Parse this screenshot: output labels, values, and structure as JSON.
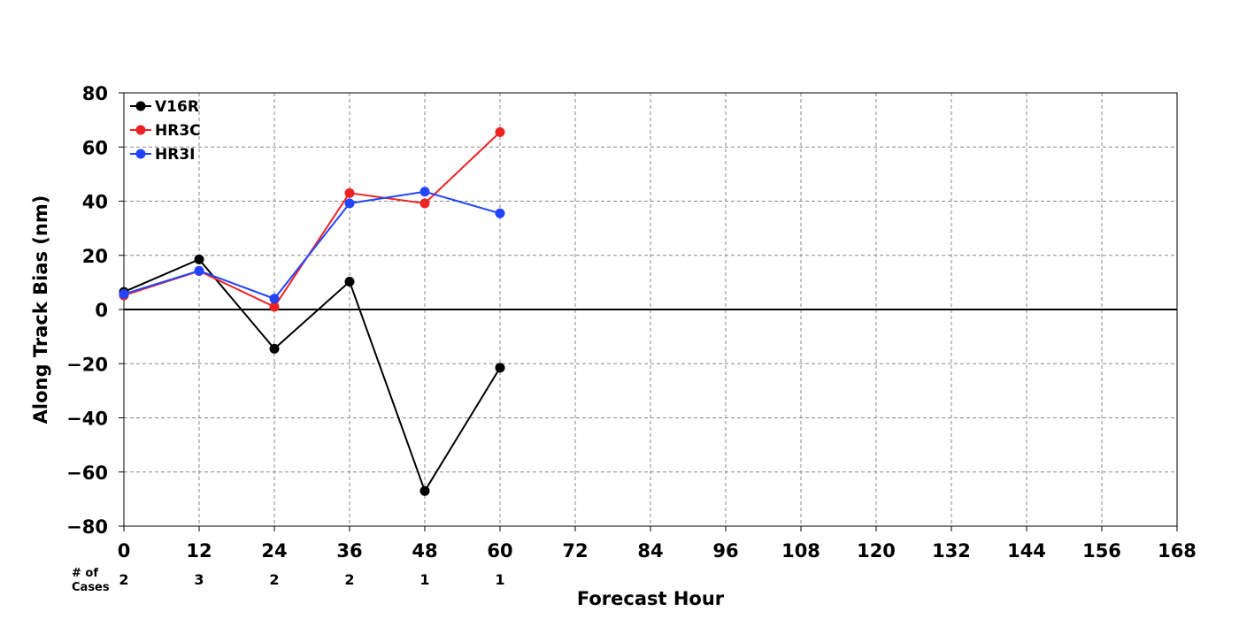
{
  "chart_data": {
    "type": "line",
    "xlabel": "Forecast Hour",
    "ylabel": "Along Track Bias (nm)",
    "xlim": [
      0,
      168
    ],
    "ylim": [
      -80,
      80
    ],
    "x_ticks": [
      0,
      12,
      24,
      36,
      48,
      60,
      72,
      84,
      96,
      108,
      120,
      132,
      144,
      156,
      168
    ],
    "y_ticks": [
      80,
      60,
      40,
      20,
      0,
      -20,
      -40,
      -60,
      -80
    ],
    "y_tick_labels": [
      "80",
      "60",
      "40",
      "20",
      "0",
      "−20",
      "−40",
      "−60",
      "−80"
    ],
    "grid": true,
    "legend_position": "top-left",
    "cases_label_line1": "# of",
    "cases_label_line2": "Cases",
    "cases": [
      {
        "x": 0,
        "n": "2"
      },
      {
        "x": 12,
        "n": "3"
      },
      {
        "x": 24,
        "n": "2"
      },
      {
        "x": 36,
        "n": "2"
      },
      {
        "x": 48,
        "n": "1"
      },
      {
        "x": 60,
        "n": "1"
      }
    ],
    "series": [
      {
        "name": "V16R",
        "color": "#000000",
        "x": [
          0,
          12,
          24,
          36,
          48,
          60
        ],
        "y": [
          6.5,
          18.5,
          -14.5,
          10.3,
          -67,
          -21.5
        ]
      },
      {
        "name": "HR3C",
        "color": "#ee2222",
        "x": [
          0,
          12,
          24,
          36,
          48,
          60
        ],
        "y": [
          5.2,
          14.2,
          1,
          43,
          39.2,
          65.5
        ]
      },
      {
        "name": "HR3I",
        "color": "#2244ff",
        "x": [
          0,
          12,
          24,
          36,
          48,
          60
        ],
        "y": [
          5.7,
          14.3,
          4,
          39.2,
          43.5,
          35.5
        ]
      }
    ]
  }
}
